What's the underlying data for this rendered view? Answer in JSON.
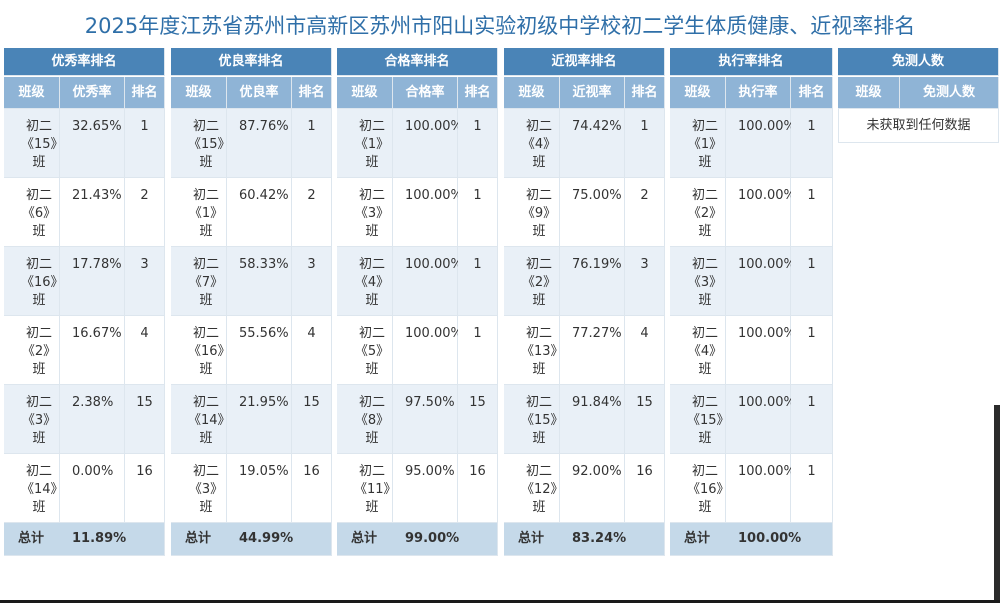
{
  "title": "2025年度江苏省苏州市高新区苏州市阳山实验初级中学校初二学生体质健康、近视率排名",
  "panels": [
    {
      "title": "优秀率排名",
      "columns": [
        "班级",
        "优秀率",
        "排名"
      ],
      "rows": [
        [
          "初二《15》班",
          "32.65%",
          "1"
        ],
        [
          "初二《6》班",
          "21.43%",
          "2"
        ],
        [
          "初二《16》班",
          "17.78%",
          "3"
        ],
        [
          "初二《2》班",
          "16.67%",
          "4"
        ],
        [
          "初二《3》班",
          "2.38%",
          "15"
        ],
        [
          "初二《14》班",
          "0.00%",
          "16"
        ]
      ],
      "total": [
        "总计",
        "11.89%"
      ]
    },
    {
      "title": "优良率排名",
      "columns": [
        "班级",
        "优良率",
        "排名"
      ],
      "rows": [
        [
          "初二《15》班",
          "87.76%",
          "1"
        ],
        [
          "初二《1》班",
          "60.42%",
          "2"
        ],
        [
          "初二《7》班",
          "58.33%",
          "3"
        ],
        [
          "初二《16》班",
          "55.56%",
          "4"
        ],
        [
          "初二《14》班",
          "21.95%",
          "15"
        ],
        [
          "初二《3》班",
          "19.05%",
          "16"
        ]
      ],
      "total": [
        "总计",
        "44.99%"
      ]
    },
    {
      "title": "合格率排名",
      "columns": [
        "班级",
        "合格率",
        "排名"
      ],
      "rows": [
        [
          "初二《1》班",
          "100.00%",
          "1"
        ],
        [
          "初二《3》班",
          "100.00%",
          "1"
        ],
        [
          "初二《4》班",
          "100.00%",
          "1"
        ],
        [
          "初二《5》班",
          "100.00%",
          "1"
        ],
        [
          "初二《8》班",
          "97.50%",
          "15"
        ],
        [
          "初二《11》班",
          "95.00%",
          "16"
        ]
      ],
      "total": [
        "总计",
        "99.00%"
      ]
    },
    {
      "title": "近视率排名",
      "columns": [
        "班级",
        "近视率",
        "排名"
      ],
      "rows": [
        [
          "初二《4》班",
          "74.42%",
          "1"
        ],
        [
          "初二《9》班",
          "75.00%",
          "2"
        ],
        [
          "初二《2》班",
          "76.19%",
          "3"
        ],
        [
          "初二《13》班",
          "77.27%",
          "4"
        ],
        [
          "初二《15》班",
          "91.84%",
          "15"
        ],
        [
          "初二《12》班",
          "92.00%",
          "16"
        ]
      ],
      "total": [
        "总计",
        "83.24%"
      ]
    },
    {
      "title": "执行率排名",
      "columns": [
        "班级",
        "执行率",
        "排名"
      ],
      "rows": [
        [
          "初二《1》班",
          "100.00%",
          "1"
        ],
        [
          "初二《2》班",
          "100.00%",
          "1"
        ],
        [
          "初二《3》班",
          "100.00%",
          "1"
        ],
        [
          "初二《4》班",
          "100.00%",
          "1"
        ],
        [
          "初二《15》班",
          "100.00%",
          "1"
        ],
        [
          "初二《16》班",
          "100.00%",
          "1"
        ]
      ],
      "total": [
        "总计",
        "100.00%"
      ]
    },
    {
      "title": "免测人数",
      "columns": [
        "班级",
        "免测人数"
      ],
      "empty": "未获取到任何数据"
    }
  ]
}
